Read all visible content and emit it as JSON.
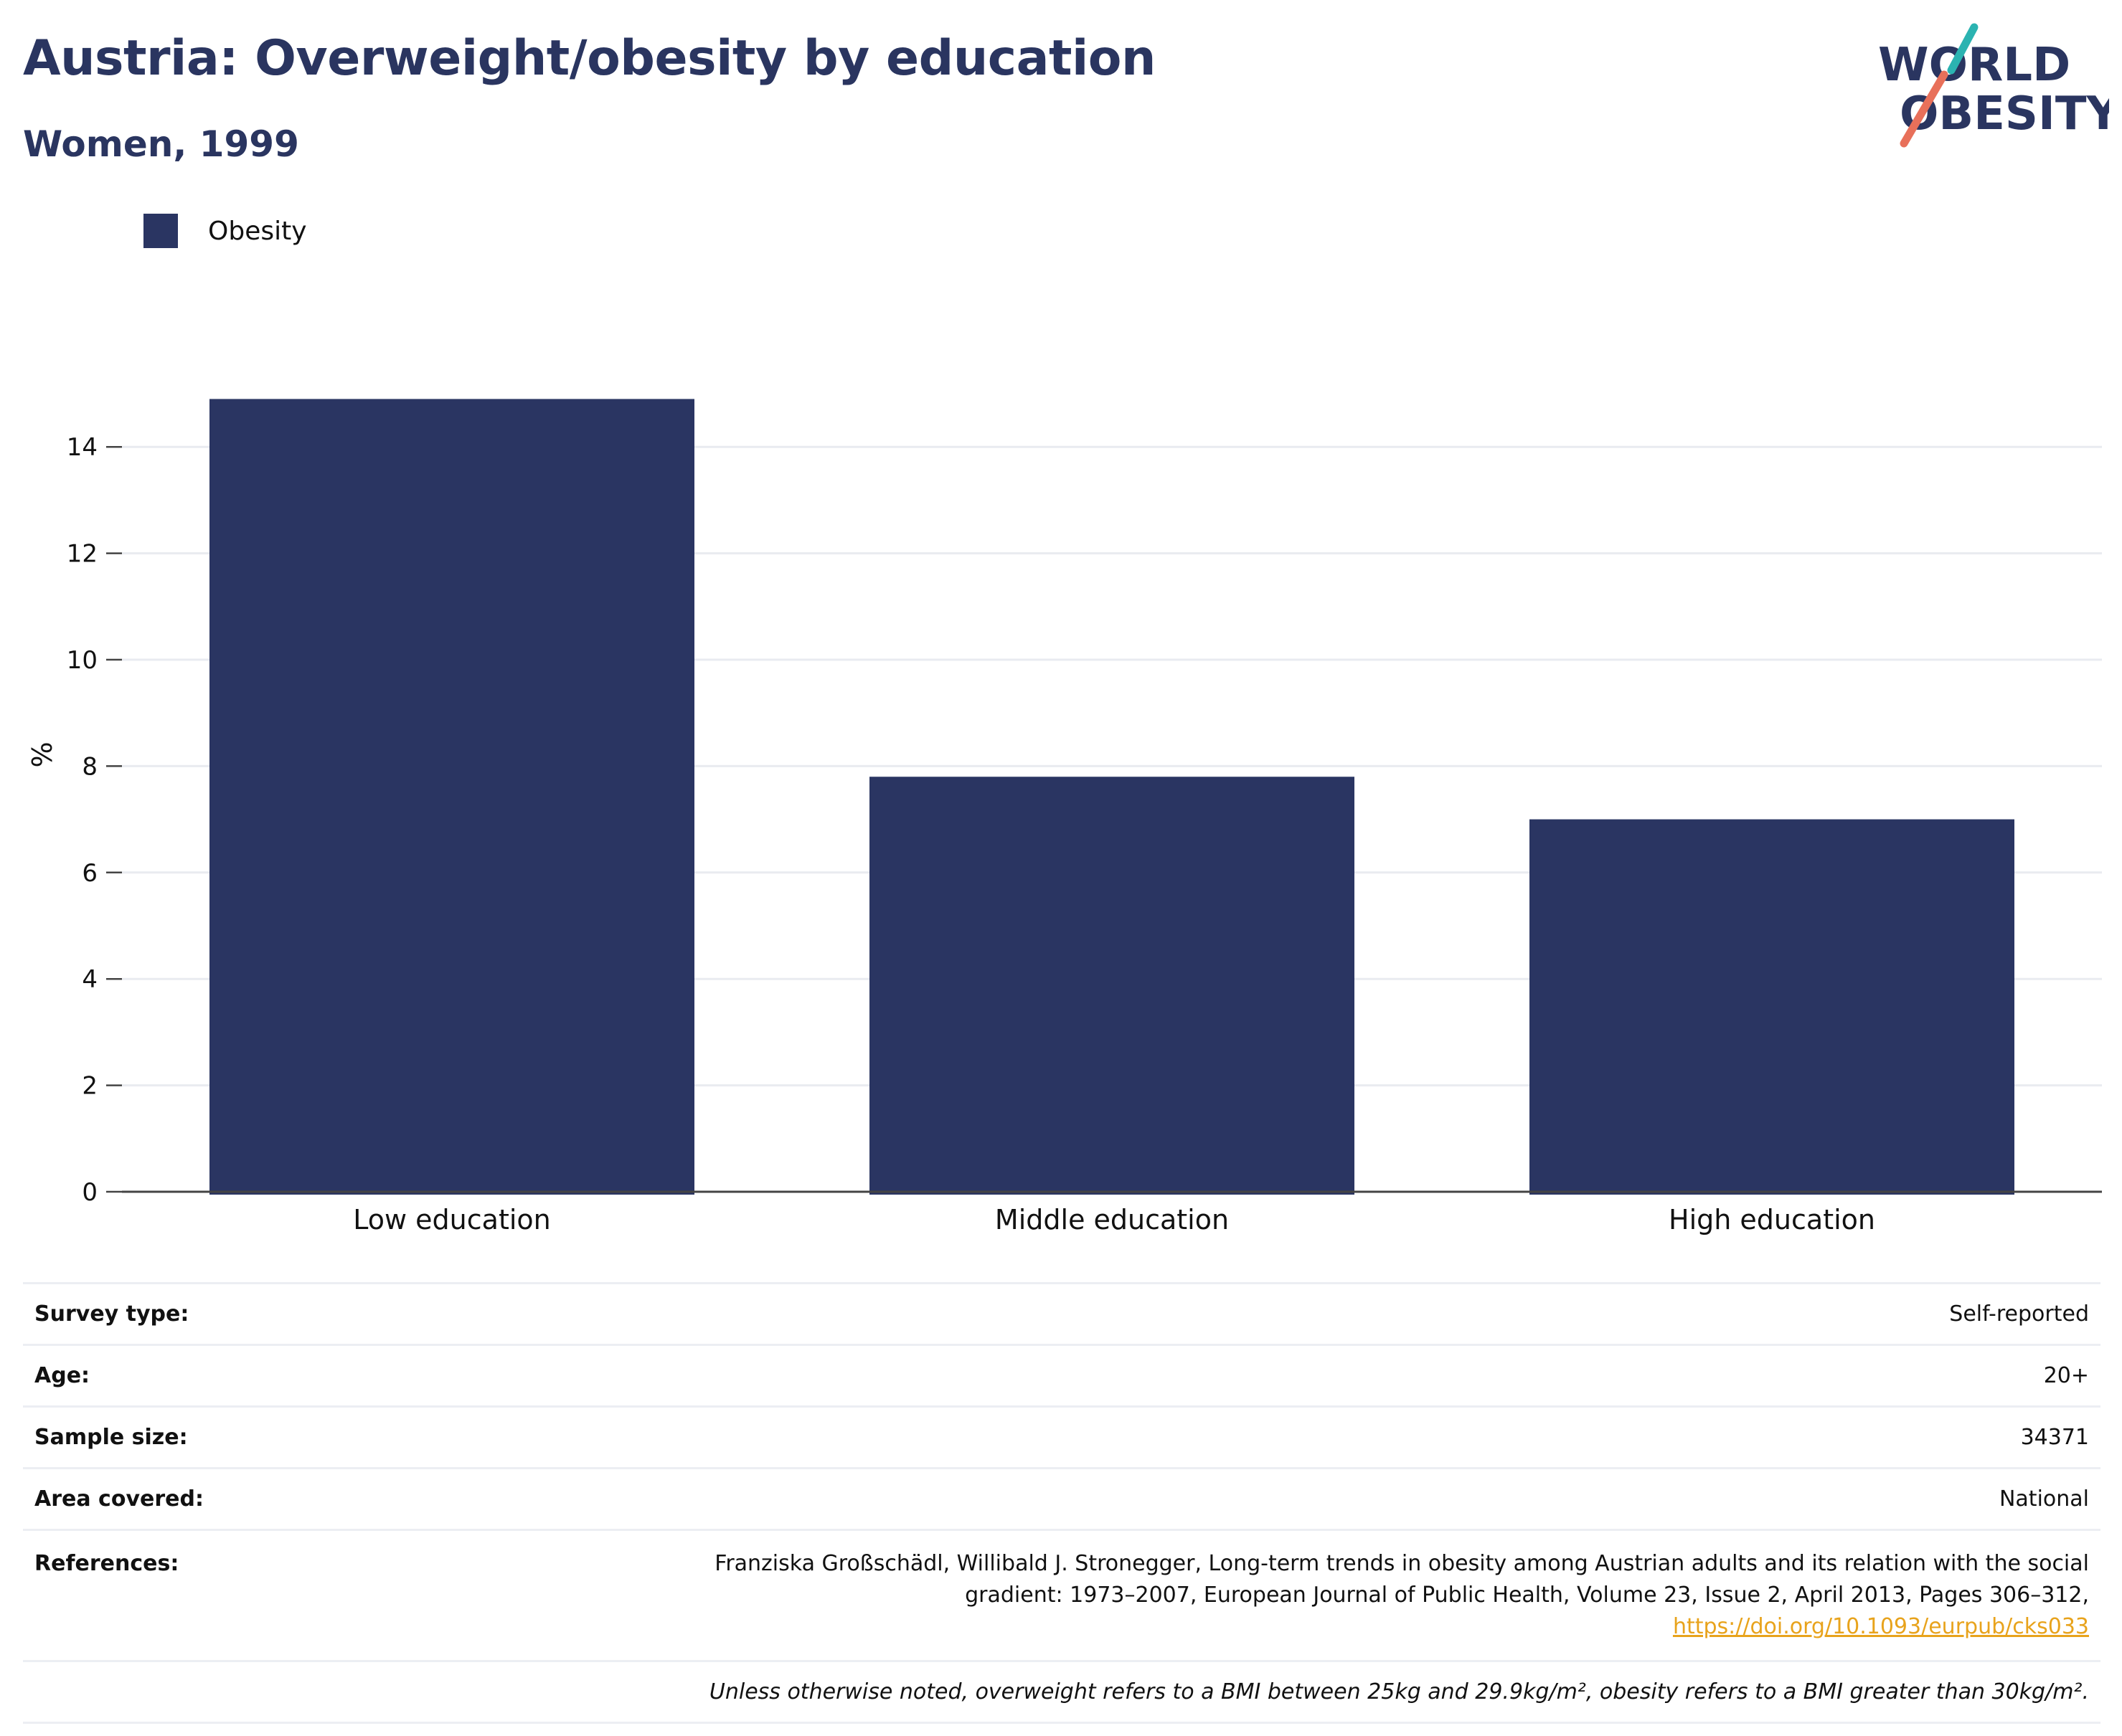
{
  "header": {
    "title": "Austria: Overweight/obesity by education",
    "subtitle": "Women, 1999"
  },
  "logo": {
    "line1": "WORLD",
    "line2": "OBESITY",
    "colors": {
      "text": "#2a3560",
      "teal": "#2bb3b1",
      "coral": "#e8705a"
    }
  },
  "legend": {
    "label": "Obesity",
    "color": "#2a3562"
  },
  "chart_data": {
    "type": "bar",
    "categories": [
      "Low education",
      "Middle education",
      "High education"
    ],
    "series": [
      {
        "name": "Obesity",
        "values": [
          14.9,
          7.8,
          7.0
        ]
      }
    ],
    "ylabel": "%",
    "ylim": [
      0,
      16
    ],
    "yticks": [
      0,
      2,
      4,
      6,
      8,
      10,
      12,
      14
    ],
    "grid": true,
    "legend_position": "top-left",
    "bar_color": "#2a3562"
  },
  "info": {
    "survey_type_label": "Survey type:",
    "survey_type_value": "Self-reported",
    "age_label": "Age:",
    "age_value": "20+",
    "sample_size_label": "Sample size:",
    "sample_size_value": "34371",
    "area_label": "Area covered:",
    "area_value": "National",
    "references_label": "References:",
    "references_line1": "Franziska Großschädl, Willibald J. Stronegger, Long-term trends in obesity among Austrian adults and its relation with the social",
    "references_line2": "gradient: 1973–2007, European Journal of Public Health, Volume 23, Issue 2, April 2013, Pages 306–312,",
    "references_link": "https://doi.org/10.1093/eurpub/cks033",
    "note": "Unless otherwise noted, overweight refers to a BMI between 25kg and 29.9kg/m², obesity refers to a BMI greater than 30kg/m²."
  }
}
